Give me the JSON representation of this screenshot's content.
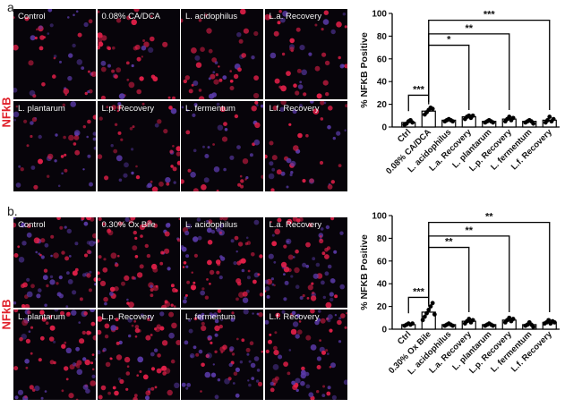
{
  "figure": {
    "panels": [
      {
        "letter": "a.",
        "stain_label": "NFkB",
        "images": [
          {
            "label": "Control",
            "intensity": 0.55
          },
          {
            "label": "0.08% CA/DCA",
            "intensity": 0.85
          },
          {
            "label": "L. acidophilus",
            "intensity": 0.55
          },
          {
            "label": "L.a. Recovery",
            "intensity": 0.7
          },
          {
            "label": "L. plantarum",
            "intensity": 0.5
          },
          {
            "label": "L.p. Recovery",
            "intensity": 0.6
          },
          {
            "label": "L. fermentum",
            "intensity": 0.45
          },
          {
            "label": "L.f. Recovery",
            "intensity": 0.6
          }
        ]
      },
      {
        "letter": "b.",
        "stain_label": "NFkB",
        "images": [
          {
            "label": "Control",
            "intensity": 0.45
          },
          {
            "label": "0.30% Ox Bile",
            "intensity": 0.8
          },
          {
            "label": "L. acidophilus",
            "intensity": 0.5
          },
          {
            "label": "L.a. Recovery",
            "intensity": 0.55
          },
          {
            "label": "L. plantarum",
            "intensity": 0.55
          },
          {
            "label": "L.p. Recovery",
            "intensity": 0.75
          },
          {
            "label": "L. fermentum",
            "intensity": 0.5
          },
          {
            "label": "L.f. Recovery",
            "intensity": 0.55
          }
        ]
      }
    ]
  },
  "chart_data": [
    {
      "type": "bar",
      "ylabel": "% NFKB Positive",
      "ylim": [
        0,
        100
      ],
      "yticks": [
        0,
        20,
        40,
        60,
        80,
        100
      ],
      "categories": [
        "Ctrl",
        "0.08% CA/DCA",
        "L. acidophilus",
        "L.a. Recovery",
        "L. plantarum",
        "L.p. Recovery",
        "L. fermentum",
        "L.f. Recovery"
      ],
      "values": [
        4,
        14,
        6,
        9,
        5,
        7,
        5,
        6
      ],
      "points": [
        [
          2,
          3,
          5,
          6,
          4
        ],
        [
          11,
          13,
          15,
          17,
          16
        ],
        [
          5,
          6,
          7,
          6,
          5
        ],
        [
          7,
          9,
          10,
          8,
          10
        ],
        [
          4,
          5,
          6,
          5,
          4
        ],
        [
          5,
          7,
          9,
          6,
          8
        ],
        [
          4,
          5,
          6,
          5,
          3
        ],
        [
          4,
          6,
          9,
          5,
          7
        ]
      ],
      "bar_color": "#ffffff",
      "significance": [
        {
          "from": 0,
          "to": 1,
          "label": "***"
        },
        {
          "from": 1,
          "to": 3,
          "label": "*"
        },
        {
          "from": 1,
          "to": 5,
          "label": "**"
        },
        {
          "from": 1,
          "to": 7,
          "label": "***"
        }
      ]
    },
    {
      "type": "bar",
      "ylabel": "% NFKB Positive",
      "ylim": [
        0,
        100
      ],
      "yticks": [
        0,
        20,
        40,
        60,
        80,
        100
      ],
      "categories": [
        "Ctrl",
        "0.30% Ox Bile",
        "L. acidophilus",
        "L.a. Recovery",
        "L. plantarum",
        "L.p. Recovery",
        "L. fermentum",
        "L.f. Recovery"
      ],
      "values": [
        4,
        15,
        4,
        7,
        4,
        8,
        4,
        6
      ],
      "points": [
        [
          3,
          4,
          5,
          4,
          5
        ],
        [
          8,
          11,
          14,
          17,
          20,
          23,
          13
        ],
        [
          3,
          4,
          5,
          4,
          3
        ],
        [
          5,
          7,
          9,
          6,
          8
        ],
        [
          3,
          4,
          5,
          4,
          3
        ],
        [
          6,
          8,
          10,
          7,
          9
        ],
        [
          3,
          4,
          6,
          4,
          2
        ],
        [
          5,
          6,
          8,
          5,
          7,
          6
        ]
      ],
      "bar_color": "#ffffff",
      "significance": [
        {
          "from": 0,
          "to": 1,
          "label": "***"
        },
        {
          "from": 1,
          "to": 3,
          "label": "**"
        },
        {
          "from": 1,
          "to": 5,
          "label": "**"
        },
        {
          "from": 1,
          "to": 7,
          "label": "**"
        }
      ]
    }
  ]
}
